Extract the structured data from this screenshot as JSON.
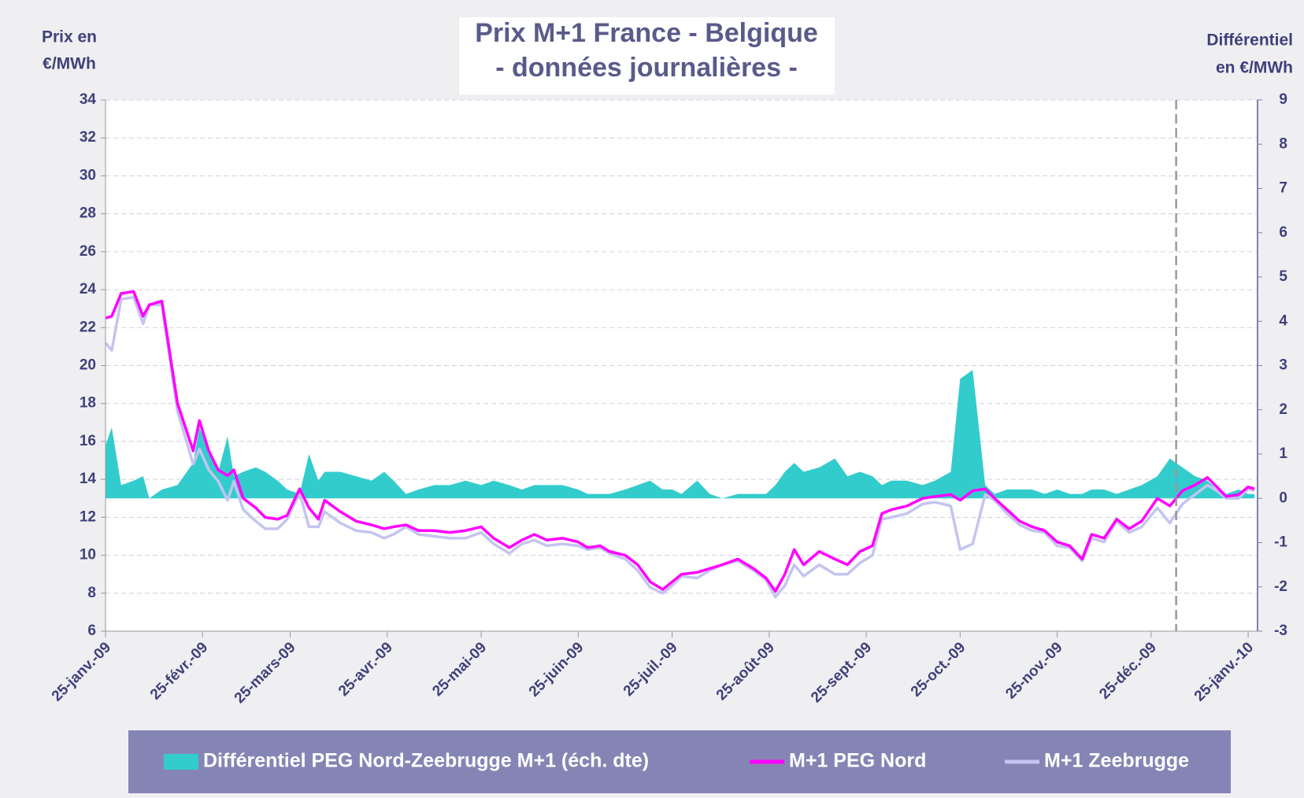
{
  "chart_data": {
    "type": "line",
    "title": [
      "Prix M+1 France - Belgique",
      "- données journalières -"
    ],
    "ylabel": [
      "Prix en",
      "€/MWh"
    ],
    "y2label": [
      "Différentiel",
      "en €/MWh"
    ],
    "x": [
      "2009-01-25",
      "2009-01-27",
      "2009-01-30",
      "2009-02-03",
      "2009-02-06",
      "2009-02-08",
      "2009-02-12",
      "2009-02-17",
      "2009-02-22",
      "2009-02-24",
      "2009-02-27",
      "2009-03-02",
      "2009-03-05",
      "2009-03-07",
      "2009-03-10",
      "2009-03-14",
      "2009-03-17",
      "2009-03-21",
      "2009-03-24",
      "2009-03-28",
      "2009-03-31",
      "2009-04-03",
      "2009-04-05",
      "2009-04-10",
      "2009-04-15",
      "2009-04-20",
      "2009-04-24",
      "2009-04-27",
      "2009-05-01",
      "2009-05-05",
      "2009-05-10",
      "2009-05-15",
      "2009-05-20",
      "2009-05-25",
      "2009-05-29",
      "2009-06-03",
      "2009-06-07",
      "2009-06-11",
      "2009-06-15",
      "2009-06-20",
      "2009-06-25",
      "2009-06-28",
      "2009-07-02",
      "2009-07-05",
      "2009-07-10",
      "2009-07-14",
      "2009-07-18",
      "2009-07-22",
      "2009-07-25",
      "2009-07-28",
      "2009-08-02",
      "2009-08-06",
      "2009-08-10",
      "2009-08-15",
      "2009-08-20",
      "2009-08-24",
      "2009-08-27",
      "2009-08-30",
      "2009-09-02",
      "2009-09-05",
      "2009-09-10",
      "2009-09-15",
      "2009-09-19",
      "2009-09-23",
      "2009-09-27",
      "2009-09-30",
      "2009-10-03",
      "2009-10-08",
      "2009-10-13",
      "2009-10-17",
      "2009-10-22",
      "2009-10-25",
      "2009-10-29",
      "2009-11-02",
      "2009-11-05",
      "2009-11-09",
      "2009-11-13",
      "2009-11-17",
      "2009-11-21",
      "2009-11-25",
      "2009-11-29",
      "2009-12-03",
      "2009-12-06",
      "2009-12-10",
      "2009-12-14",
      "2009-12-18",
      "2009-12-22",
      "2009-12-27",
      "2009-12-31",
      "2010-01-04",
      "2010-01-08",
      "2010-01-12",
      "2010-01-15",
      "2010-01-18",
      "2010-01-22",
      "2010-01-25",
      "2010-01-27"
    ],
    "series": [
      {
        "name": "Différentiel PEG Nord-Zeebrugge M+1 (éch. dte)",
        "kind": "area",
        "axis": "y2",
        "color": "#33cccc",
        "values": [
          1.2,
          1.6,
          0.3,
          0.4,
          0.5,
          0.0,
          0.2,
          0.3,
          0.8,
          1.6,
          1.1,
          0.6,
          1.4,
          0.5,
          0.6,
          0.7,
          0.6,
          0.4,
          0.2,
          0.1,
          1.0,
          0.4,
          0.6,
          0.6,
          0.5,
          0.4,
          0.6,
          0.4,
          0.1,
          0.2,
          0.3,
          0.3,
          0.4,
          0.3,
          0.4,
          0.3,
          0.2,
          0.3,
          0.3,
          0.3,
          0.2,
          0.1,
          0.1,
          0.1,
          0.2,
          0.3,
          0.4,
          0.2,
          0.2,
          0.1,
          0.4,
          0.1,
          0.0,
          0.1,
          0.1,
          0.1,
          0.3,
          0.6,
          0.8,
          0.6,
          0.7,
          0.9,
          0.5,
          0.6,
          0.5,
          0.3,
          0.4,
          0.4,
          0.3,
          0.4,
          0.6,
          2.7,
          2.9,
          0.3,
          0.1,
          0.2,
          0.2,
          0.2,
          0.1,
          0.2,
          0.1,
          0.1,
          0.2,
          0.2,
          0.1,
          0.2,
          0.3,
          0.5,
          0.9,
          0.7,
          0.5,
          0.4,
          0.2,
          0.1,
          0.2,
          0.1,
          0.1
        ]
      },
      {
        "name": "M+1 Zeebrugge",
        "kind": "line",
        "color": "#c4c4f0",
        "values": [
          21.2,
          20.8,
          23.5,
          23.6,
          22.2,
          23.2,
          23.2,
          17.6,
          14.8,
          15.6,
          14.5,
          13.9,
          12.9,
          13.9,
          12.4,
          11.8,
          11.4,
          11.4,
          11.9,
          13.3,
          11.5,
          11.5,
          12.3,
          11.7,
          11.3,
          11.2,
          10.9,
          11.1,
          11.5,
          11.1,
          11.0,
          10.9,
          10.9,
          11.2,
          10.6,
          10.1,
          10.6,
          10.8,
          10.5,
          10.6,
          10.5,
          10.3,
          10.4,
          10.1,
          9.8,
          9.2,
          8.3,
          8.0,
          8.4,
          8.9,
          8.8,
          9.2,
          9.5,
          9.7,
          9.2,
          8.7,
          7.8,
          8.4,
          9.5,
          8.9,
          9.5,
          9.0,
          9.0,
          9.6,
          10.0,
          11.9,
          12.0,
          12.2,
          12.7,
          12.8,
          12.6,
          10.3,
          10.6,
          13.2,
          12.9,
          12.2,
          11.6,
          11.3,
          11.2,
          10.5,
          10.4,
          9.7,
          10.9,
          10.7,
          11.8,
          11.2,
          11.5,
          12.5,
          11.7,
          12.7,
          13.2,
          13.7,
          13.4,
          13.0,
          13.0,
          13.5,
          13.4
        ]
      },
      {
        "name": "M+1 PEG Nord",
        "kind": "line",
        "color": "#ff00ff",
        "values": [
          22.5,
          22.6,
          23.8,
          23.9,
          22.6,
          23.2,
          23.4,
          18.0,
          15.5,
          17.1,
          15.5,
          14.5,
          14.2,
          14.5,
          13.0,
          12.5,
          12.0,
          11.9,
          12.1,
          13.5,
          12.5,
          11.9,
          12.9,
          12.3,
          11.8,
          11.6,
          11.4,
          11.5,
          11.6,
          11.3,
          11.3,
          11.2,
          11.3,
          11.5,
          10.9,
          10.4,
          10.8,
          11.1,
          10.8,
          10.9,
          10.7,
          10.4,
          10.5,
          10.2,
          10.0,
          9.5,
          8.6,
          8.2,
          8.6,
          9.0,
          9.1,
          9.3,
          9.5,
          9.8,
          9.3,
          8.8,
          8.1,
          9.0,
          10.3,
          9.5,
          10.2,
          9.8,
          9.5,
          10.2,
          10.5,
          12.2,
          12.4,
          12.6,
          13.0,
          13.1,
          13.2,
          12.9,
          13.4,
          13.5,
          13.0,
          12.4,
          11.8,
          11.5,
          11.3,
          10.7,
          10.5,
          9.8,
          11.1,
          10.9,
          11.9,
          11.4,
          11.8,
          13.0,
          12.6,
          13.4,
          13.7,
          14.1,
          13.6,
          13.1,
          13.2,
          13.6,
          13.5
        ]
      }
    ],
    "legend_order": [
      0,
      2,
      1
    ],
    "xlim": [
      "2009-01-25",
      "2010-01-28"
    ],
    "xticks": [
      {
        "value": "2009-01-25",
        "label": "25-janv.-09"
      },
      {
        "value": "2009-02-25",
        "label": "25-févr.-09"
      },
      {
        "value": "2009-03-25",
        "label": "25-mars-09"
      },
      {
        "value": "2009-04-25",
        "label": "25-avr.-09"
      },
      {
        "value": "2009-05-25",
        "label": "25-mai-09"
      },
      {
        "value": "2009-06-25",
        "label": "25-juin-09"
      },
      {
        "value": "2009-07-25",
        "label": "25-juil.-09"
      },
      {
        "value": "2009-08-25",
        "label": "25-août-09"
      },
      {
        "value": "2009-09-25",
        "label": "25-sept.-09"
      },
      {
        "value": "2009-10-25",
        "label": "25-oct.-09"
      },
      {
        "value": "2009-11-25",
        "label": "25-nov.-09"
      },
      {
        "value": "2009-12-25",
        "label": "25-déc.-09"
      },
      {
        "value": "2010-01-25",
        "label": "25-janv.-10"
      }
    ],
    "ylim": [
      6,
      34
    ],
    "yticks": [
      6,
      8,
      10,
      12,
      14,
      16,
      18,
      20,
      22,
      24,
      26,
      28,
      30,
      32,
      34
    ],
    "y2lim": [
      -3,
      9
    ],
    "y2ticks": [
      -3,
      -2,
      -1,
      0,
      1,
      2,
      3,
      4,
      5,
      6,
      7,
      8,
      9
    ],
    "marker_date": "2010-01-02",
    "grid": true
  }
}
